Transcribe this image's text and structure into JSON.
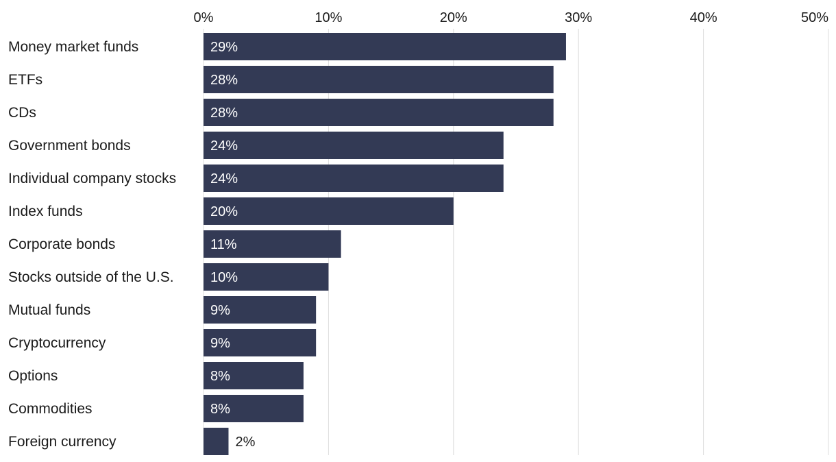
{
  "chart_data": {
    "type": "bar",
    "orientation": "horizontal",
    "title": "",
    "xlabel": "",
    "ylabel": "",
    "xlim": [
      0,
      50
    ],
    "x_ticks": [
      0,
      10,
      20,
      30,
      40,
      50
    ],
    "x_tick_labels": [
      "0%",
      "10%",
      "20%",
      "30%",
      "40%",
      "50%"
    ],
    "x_axis_position": "top",
    "grid": true,
    "legend": "none",
    "categories": [
      "Money market funds",
      "ETFs",
      "CDs",
      "Government bonds",
      "Individual company stocks",
      "Index funds",
      "Corporate bonds",
      "Stocks outside of the U.S.",
      "Mutual funds",
      "Cryptocurrency",
      "Options",
      "Commodities",
      "Foreign currency"
    ],
    "values": [
      29,
      28,
      28,
      24,
      24,
      20,
      11,
      10,
      9,
      9,
      8,
      8,
      2
    ],
    "data_labels": [
      "29%",
      "28%",
      "28%",
      "24%",
      "24%",
      "20%",
      "11%",
      "10%",
      "9%",
      "9%",
      "8%",
      "8%",
      "2%"
    ],
    "colors": {
      "bar": "#333a55",
      "grid": "#dcdcdc",
      "label_inside": "#ffffff",
      "label_outside": "#1a1a1a",
      "text": "#1a1a1a",
      "background": "#ffffff"
    }
  }
}
